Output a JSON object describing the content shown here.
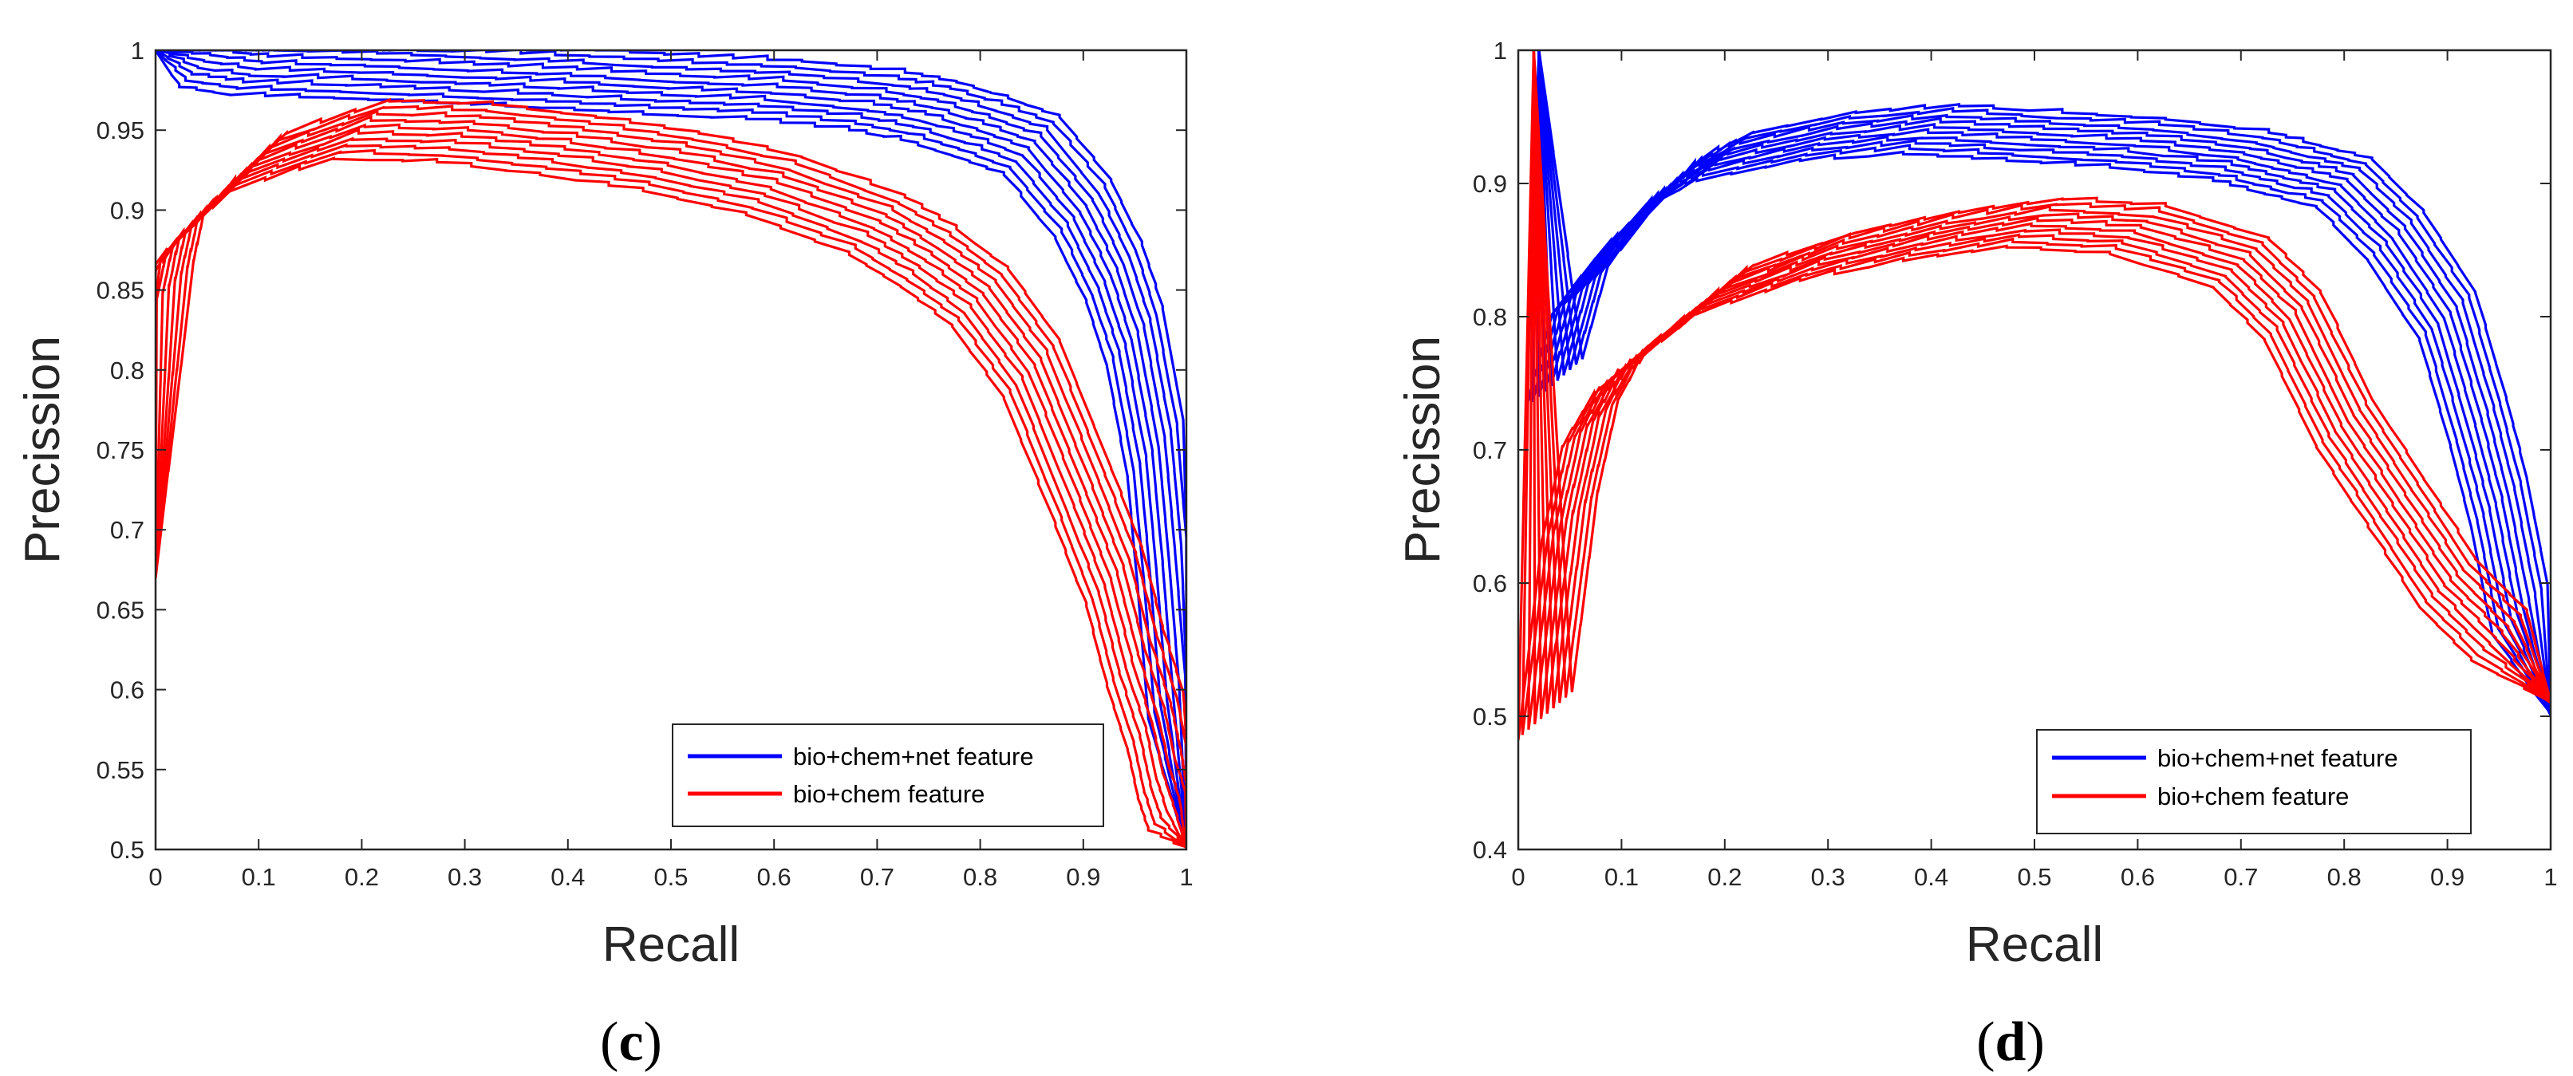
{
  "colors": {
    "blue": "#0000ff",
    "red": "#ff0000",
    "axis": "#262626"
  },
  "chart_data": [
    {
      "id": "c",
      "type": "line",
      "panel_label": "c",
      "xlabel": "Recall",
      "ylabel": "Precission",
      "xlim": [
        0,
        1
      ],
      "ylim": [
        0.5,
        1
      ],
      "xticks": [
        0,
        0.1,
        0.2,
        0.3,
        0.4,
        0.5,
        0.6,
        0.7,
        0.8,
        0.9,
        1
      ],
      "xtick_labels": [
        "0",
        "0.1",
        "0.2",
        "0.3",
        "0.4",
        "0.5",
        "0.6",
        "0.7",
        "0.8",
        "0.9",
        "1"
      ],
      "yticks": [
        0.5,
        0.55,
        0.6,
        0.65,
        0.7,
        0.75,
        0.8,
        0.85,
        0.9,
        0.95,
        1
      ],
      "ytick_labels": [
        "0.5",
        "0.55",
        "0.6",
        "0.65",
        "0.7",
        "0.75",
        "0.8",
        "0.85",
        "0.9",
        "0.95",
        "1"
      ],
      "legend_position": "bottom-right",
      "grid": false,
      "series": [
        {
          "name": "bio+chem+net feature",
          "color": "#0000ff",
          "runs": 10,
          "x": [
            0,
            0.05,
            0.1,
            0.2,
            0.3,
            0.4,
            0.5,
            0.6,
            0.7,
            0.75,
            0.8,
            0.85,
            0.9,
            0.93,
            0.95,
            0.97,
            0.98,
            0.99,
            1.0
          ],
          "y": [
            1.0,
            0.995,
            0.99,
            0.988,
            0.985,
            0.982,
            0.978,
            0.975,
            0.968,
            0.962,
            0.952,
            0.94,
            0.9,
            0.86,
            0.82,
            0.75,
            0.68,
            0.6,
            0.5
          ]
        },
        {
          "name": "bio+chem feature",
          "color": "#ff0000",
          "runs": 10,
          "x": [
            0,
            0.01,
            0.02,
            0.05,
            0.1,
            0.2,
            0.3,
            0.4,
            0.5,
            0.6,
            0.7,
            0.75,
            0.8,
            0.85,
            0.9,
            0.93,
            0.95,
            0.97,
            0.98,
            0.99,
            1.0
          ],
          "y": [
            0.67,
            0.85,
            0.88,
            0.9,
            0.93,
            0.95,
            0.948,
            0.94,
            0.93,
            0.915,
            0.89,
            0.87,
            0.845,
            0.8,
            0.72,
            0.67,
            0.62,
            0.58,
            0.55,
            0.53,
            0.5
          ]
        }
      ]
    },
    {
      "id": "d",
      "type": "line",
      "panel_label": "d",
      "xlabel": "Recall",
      "ylabel": "Precission",
      "xlim": [
        0,
        1
      ],
      "ylim": [
        0.4,
        1
      ],
      "xticks": [
        0,
        0.1,
        0.2,
        0.3,
        0.4,
        0.5,
        0.6,
        0.7,
        0.8,
        0.9,
        1
      ],
      "xtick_labels": [
        "0",
        "0.1",
        "0.2",
        "0.3",
        "0.4",
        "0.5",
        "0.6",
        "0.7",
        "0.8",
        "0.9",
        "1"
      ],
      "yticks": [
        0.4,
        0.5,
        0.6,
        0.7,
        0.8,
        0.9,
        1
      ],
      "ytick_labels": [
        "0.4",
        "0.5",
        "0.6",
        "0.7",
        "0.8",
        "0.9",
        "1"
      ],
      "legend_position": "bottom-right",
      "grid": false,
      "series": [
        {
          "name": "bio+chem+net feature",
          "color": "#0000ff",
          "runs": 10,
          "x": [
            0.02,
            0.035,
            0.06,
            0.1,
            0.15,
            0.2,
            0.3,
            0.4,
            0.5,
            0.6,
            0.7,
            0.75,
            0.8,
            0.85,
            0.9,
            0.93,
            0.95,
            0.97,
            1.0
          ],
          "y": [
            1.0,
            0.75,
            0.82,
            0.86,
            0.9,
            0.92,
            0.935,
            0.94,
            0.935,
            0.93,
            0.92,
            0.91,
            0.9,
            0.86,
            0.8,
            0.72,
            0.66,
            0.58,
            0.5
          ]
        },
        {
          "name": "bio+chem feature",
          "color": "#ff0000",
          "runs": 10,
          "x": [
            0.015,
            0.025,
            0.05,
            0.07,
            0.1,
            0.15,
            0.2,
            0.3,
            0.4,
            0.5,
            0.6,
            0.7,
            0.75,
            0.8,
            0.85,
            0.9,
            0.95,
            1.0
          ],
          "y": [
            1.0,
            0.5,
            0.65,
            0.72,
            0.76,
            0.79,
            0.82,
            0.845,
            0.86,
            0.87,
            0.865,
            0.84,
            0.8,
            0.72,
            0.66,
            0.6,
            0.56,
            0.51
          ]
        }
      ]
    }
  ]
}
